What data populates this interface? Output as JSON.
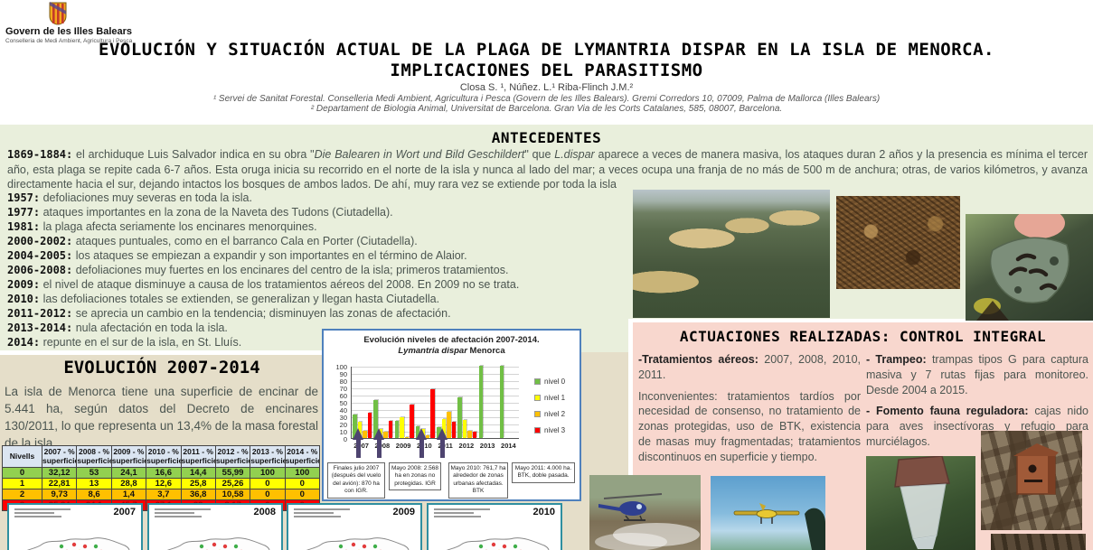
{
  "theme": {
    "page_bg": "#e5dec9",
    "header_bg": "#ffffff",
    "green_bg": "#e9efdc",
    "pink_bg": "#f8d7ce",
    "chart_border": "#4f81bd",
    "map_border": "#2f8fa0",
    "table_header_bg": "#dbe5f1",
    "arrow_color": "#4e4470"
  },
  "header": {
    "logo_org": "Govern de les Illes Balears",
    "logo_dept": "Conselleria de Medi Ambient, Agricultura i Pesca",
    "title_line1": "EVOLUCIÓN Y SITUACIÓN ACTUAL DE LA PLAGA DE LYMANTRIA DISPAR EN LA ISLA DE MENORCA.",
    "title_line2": "IMPLICACIONES DEL PARASITISMO",
    "authors": "Closa S. ¹, Núñez. L.¹ Riba-Flinch J.M.²",
    "affiliation1": "¹ Servei de Sanitat Forestal. Conselleria Medi Ambient, Agricultura i Pesca (Govern de les Illes Balears). Gremi Corredors 10, 07009, Palma de Mallorca (Illes Balears)",
    "affiliation2": "² Departament de Biologia Animal, Universitat de Barcelona. Gran Via de les Corts Catalanes, 585, 08007, Barcelona."
  },
  "antecedentes": {
    "heading": "ANTECEDENTES",
    "intro_segments": [
      {
        "t": "1869-1884:",
        "b": 1,
        "mono": 1
      },
      {
        "t": " el archiduque Luis Salvador indica en su obra \""
      },
      {
        "t": "Die Balearen in Wort und Bild Geschildert",
        "i": 1
      },
      {
        "t": "\" que "
      },
      {
        "t": "L.dispar",
        "i": 1
      },
      {
        "t": " aparece a veces  de manera masiva, los ataques duran 2 años y la presencia es mínima el tercer año, esta plaga se repite cada 6-7 años. Esta oruga inicia su recorrido en el norte de la isla y nunca al lado del mar; a veces ocupa una franja de no más de 500 m de anchura; otras, de varios kilómetros, y avanza directamente hacia el sur, dejando intactos los bosques de ambos lados. De ahí, muy rara vez se extiende por toda la isla"
      }
    ],
    "timeline": [
      {
        "year": "1957:",
        "text": "defoliaciones muy severas en toda la isla."
      },
      {
        "year": "1977:",
        "text": "ataques importantes en la zona de la Naveta des Tudons (Ciutadella)."
      },
      {
        "year": "1981:",
        "text": "la plaga afecta seriamente los encinares menorquines."
      },
      {
        "year": "2000-2002:",
        "text": "ataques puntuales, como en el barranco Cala en Porter (Ciutadella)."
      },
      {
        "year": "2004-2005:",
        "text": "los ataques se empiezan a expandir y son importantes en el término de Alaior."
      },
      {
        "year": "2006-2008:",
        "text": "defoliaciones muy fuertes en los encinares del centro de la isla; primeros tratamientos."
      },
      {
        "year": "2009:",
        "text": "el nivel de ataque disminuye a causa de los tratamientos aéreos del 2008. En 2009 no se trata."
      },
      {
        "year": "2010:",
        "text": "las defoliaciones totales se extienden, se generalizan y llegan hasta Ciutadella."
      },
      {
        "year": "2011-2012:",
        "text": "se aprecia un cambio en la tendencia; disminuyen las zonas de afectación."
      },
      {
        "year": "2013-2014:",
        "text": "nula afectación en toda la isla."
      },
      {
        "year": "2014:",
        "text": "repunte en el sur de la isla, en St. Lluís."
      }
    ]
  },
  "evolucion": {
    "heading": "EVOLUCIÓN 2007-2014",
    "paragraph": "La isla de Menorca tiene una superficie de encinar de 5.441 ha, según datos del Decreto de encinares 130/2011, lo que representa un 13,4% de la masa forestal de la isla.",
    "table": {
      "headers": [
        "Nivells",
        "2007 - % superficie",
        "2008 - % superficie",
        "2009 - % superficie",
        "2010 - % superficie",
        "2011 - % superficie",
        "2012 - % superficie",
        "2013 - % superficie",
        "2014 - % superficie"
      ],
      "rows": [
        {
          "nivel": "0",
          "color": "#92d050",
          "text_color": "#111111",
          "values": [
            "32,12",
            "53",
            "24,1",
            "16,6",
            "14,4",
            "55,99",
            "100",
            "100"
          ]
        },
        {
          "nivel": "1",
          "color": "#ffff00",
          "text_color": "#111111",
          "values": [
            "22,81",
            "13",
            "28,8",
            "12,6",
            "25,8",
            "25,26",
            "0",
            "0"
          ]
        },
        {
          "nivel": "2",
          "color": "#ffc000",
          "text_color": "#111111",
          "values": [
            "9,73",
            "8,6",
            "1,4",
            "3,7",
            "36,8",
            "10,58",
            "0",
            "0"
          ]
        },
        {
          "nivel": "3",
          "color": "#ff0000",
          "text_color": "#a50000",
          "values": [
            "35,34",
            "24,1",
            "45,7",
            "67,1",
            "23",
            "8,17",
            "0",
            "0"
          ]
        }
      ]
    }
  },
  "chart_data": {
    "type": "bar",
    "title": "Evolución niveles de afectación 2007-2014.",
    "subtitle_italic": "Lymantria dispar",
    "subtitle_rest": " Menorca",
    "categories": [
      "2007",
      "2008",
      "2009",
      "2010",
      "2011",
      "2012",
      "2013",
      "2014"
    ],
    "series": [
      {
        "name": "nivel 0",
        "color": "#71bf45",
        "values": [
          32.12,
          53,
          24.1,
          16.6,
          14.4,
          55.99,
          100,
          100
        ]
      },
      {
        "name": "nivel 1",
        "color": "#ffff00",
        "values": [
          22.81,
          13,
          28.8,
          12.6,
          25.8,
          25.26,
          0,
          0
        ]
      },
      {
        "name": "nivel 2",
        "color": "#ffc000",
        "values": [
          9.73,
          8.6,
          1.4,
          3.7,
          36.8,
          10.58,
          0,
          0
        ]
      },
      {
        "name": "nivel 3",
        "color": "#ff0000",
        "values": [
          35.34,
          24.1,
          45.7,
          67.1,
          23,
          8.17,
          0,
          0
        ]
      }
    ],
    "ylim": [
      0,
      100
    ],
    "ytick_step": 10,
    "grid": true,
    "legend_position": "right",
    "treatment_arrow_years": [
      "2007",
      "2008",
      "2010",
      "2011"
    ],
    "annotations": [
      {
        "year": "2007",
        "text": "Finales julio 2007 (después del vuelo del avión): 870 ha con IGR."
      },
      {
        "year": "2008",
        "text": "Mayo 2008: 2.568 ha en zonas no protegidas. IGR"
      },
      {
        "year": "2010",
        "text": "Mayo 2010: 761,7 ha alrededor de zonas urbanas afectadas. BTK"
      },
      {
        "year": "2011",
        "text": "Mayo 2011: 4.000 ha. BTK, doble pasada."
      }
    ]
  },
  "actuaciones": {
    "heading": "ACTUACIONES REALIZADAS: CONTROL INTEGRAL",
    "columns": [
      [
        {
          "label": "-Tratamientos aéreos:",
          "text": " 2007, 2008, 2010, 2011."
        },
        {
          "label": "",
          "text": "Inconvenientes: tratamientos tardíos por necesidad de consenso, no tratamiento de zonas protegidas, uso de BTK, existencia de masas muy fragmentadas; tratamientos discontinuos en superficie y tiempo."
        }
      ],
      [
        {
          "label": "- Trampeo:",
          "text": " trampas tipos G para captura masiva y 7 rutas fijas para monitoreo. Desde 2004 a 2015."
        },
        {
          "label": "- Fomento fauna reguladora:",
          "text": " cajas nido para aves insectívoras y refugio para murciélagos."
        }
      ]
    ]
  },
  "maps": {
    "years": [
      "2007",
      "2008",
      "2009",
      "2010"
    ]
  },
  "photos": [
    {
      "name": "aerial-defoliated-forest"
    },
    {
      "name": "caterpillar-mass"
    },
    {
      "name": "caterpillars-on-oak-leaf"
    },
    {
      "name": "helicopter-spraying"
    },
    {
      "name": "spray-plane"
    },
    {
      "name": "g-type-trap"
    },
    {
      "name": "nest-box-on-tree"
    },
    {
      "name": "nest-box-detail"
    }
  ]
}
